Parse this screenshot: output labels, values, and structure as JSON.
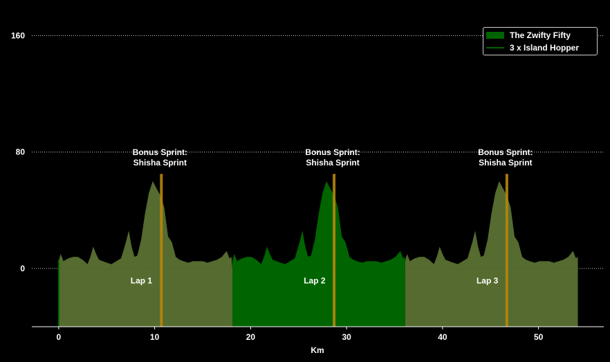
{
  "chart_data": {
    "type": "area",
    "xlabel": "Km",
    "ylabel": "",
    "xlim": [
      -2.8,
      56.8
    ],
    "ylim": [
      -40,
      175
    ],
    "xticks": [
      0,
      10,
      20,
      30,
      40,
      50
    ],
    "yticks": [
      0,
      80,
      160
    ],
    "grid": "horizontal dotted",
    "legend_position": "upper-right",
    "series": [
      {
        "name": "The Zwifty Fifty",
        "kind": "fill"
      },
      {
        "name": "3 x Island Hopper",
        "kind": "line"
      }
    ],
    "lap_length_km": 18.0,
    "route_end_km": 54.1,
    "elevation_profile_one_lap": {
      "x": [
        0,
        0.2,
        0.5,
        1.0,
        1.5,
        2.0,
        2.5,
        3.0,
        3.3,
        3.6,
        3.9,
        4.2,
        4.6,
        5.0,
        5.5,
        6.0,
        6.5,
        7.0,
        7.3,
        7.6,
        7.9,
        8.2,
        8.6,
        9.0,
        9.4,
        9.8,
        10.2,
        10.6,
        11.0,
        11.4,
        11.8,
        12.2,
        12.6,
        13.0,
        13.5,
        14.0,
        14.5,
        15.0,
        15.5,
        16.0,
        16.5,
        17.0,
        17.5,
        17.8,
        18.0
      ],
      "y": [
        5,
        10,
        5,
        7,
        8,
        8,
        6,
        3,
        8,
        15,
        10,
        6,
        5,
        4,
        3,
        5,
        7,
        18,
        26,
        15,
        8,
        9,
        20,
        38,
        52,
        60,
        55,
        50,
        42,
        22,
        18,
        8,
        6,
        5,
        4,
        5,
        5,
        5,
        4,
        5,
        6,
        8,
        12,
        7,
        8
      ]
    },
    "laps": [
      {
        "label": "Lap 1",
        "start": 0,
        "end": 18.1
      },
      {
        "label": "Lap 2",
        "start": 18.1,
        "end": 36.1
      },
      {
        "label": "Lap 3",
        "start": 36.1,
        "end": 54.1
      }
    ],
    "sprints": [
      {
        "label": "Bonus Sprint:\nShisha Sprint",
        "x": 10.7
      },
      {
        "label": "Bonus Sprint:\nShisha Sprint",
        "x": 28.7
      },
      {
        "label": "Bonus Sprint:\nShisha Sprint",
        "x": 46.7
      }
    ]
  },
  "colors": {
    "lap_fill": "#556b2f",
    "active_lap_fill": "#006400",
    "profile_fill": "#006400",
    "sprint_bar": "#b8860b",
    "grid": "#d0d0d0"
  }
}
